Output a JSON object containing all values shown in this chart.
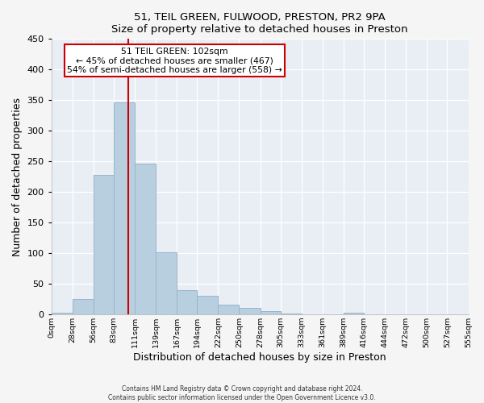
{
  "title": "51, TEIL GREEN, FULWOOD, PRESTON, PR2 9PA",
  "subtitle": "Size of property relative to detached houses in Preston",
  "xlabel": "Distribution of detached houses by size in Preston",
  "ylabel": "Number of detached properties",
  "bar_color": "#b8cfe0",
  "bar_edge_color": "#9ab4cc",
  "background_color": "#e8eef4",
  "grid_color": "#ffffff",
  "vline_x": 102,
  "vline_color": "#cc0000",
  "annotation_line1": "51 TEIL GREEN: 102sqm",
  "annotation_line2": "← 45% of detached houses are smaller (467)",
  "annotation_line3": "54% of semi-detached houses are larger (558) →",
  "bin_edges": [
    0,
    28,
    56,
    83,
    111,
    139,
    167,
    194,
    222,
    250,
    278,
    305,
    333,
    361,
    389,
    416,
    444,
    472,
    500,
    527,
    555
  ],
  "bin_counts": [
    3,
    25,
    228,
    347,
    246,
    101,
    40,
    30,
    16,
    11,
    5,
    1,
    0,
    0,
    3,
    0,
    0,
    0,
    0,
    0
  ],
  "tick_labels": [
    "0sqm",
    "28sqm",
    "56sqm",
    "83sqm",
    "111sqm",
    "139sqm",
    "167sqm",
    "194sqm",
    "222sqm",
    "250sqm",
    "278sqm",
    "305sqm",
    "333sqm",
    "361sqm",
    "389sqm",
    "416sqm",
    "444sqm",
    "472sqm",
    "500sqm",
    "527sqm",
    "555sqm"
  ],
  "ylim": [
    0,
    450
  ],
  "yticks": [
    0,
    50,
    100,
    150,
    200,
    250,
    300,
    350,
    400,
    450
  ],
  "footnote1": "Contains HM Land Registry data © Crown copyright and database right 2024.",
  "footnote2": "Contains public sector information licensed under the Open Government Licence v3.0."
}
